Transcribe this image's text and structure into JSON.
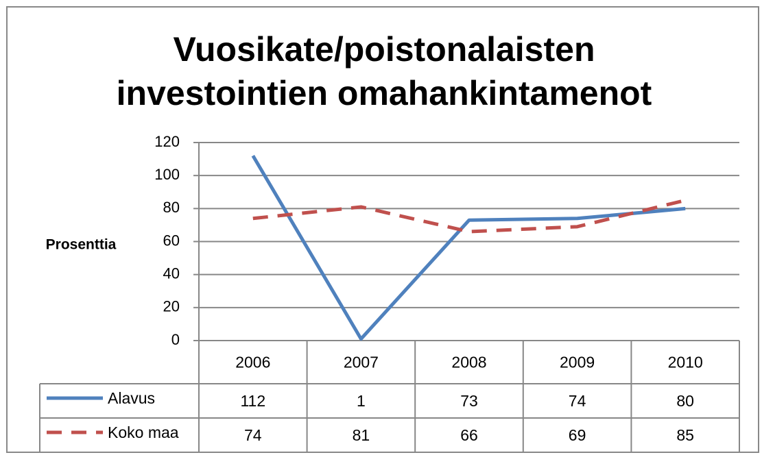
{
  "chart_data": {
    "type": "line",
    "title": [
      "Vuosikate/poistonalaisten",
      "investointien omahankintamenot"
    ],
    "y_label": "Prosenttia",
    "categories": [
      "2006",
      "2007",
      "2008",
      "2009",
      "2010"
    ],
    "series": [
      {
        "name": "Alavus",
        "color": "#4f81bd",
        "dashed": false,
        "values": [
          112,
          1,
          73,
          74,
          80
        ]
      },
      {
        "name": "Koko maa",
        "color": "#c0504d",
        "dashed": true,
        "values": [
          74,
          81,
          66,
          69,
          85
        ]
      }
    ],
    "ylim": [
      0,
      120
    ],
    "yticks": [
      0,
      20,
      40,
      60,
      80,
      100,
      120
    ],
    "grid": true,
    "data_table": true
  }
}
